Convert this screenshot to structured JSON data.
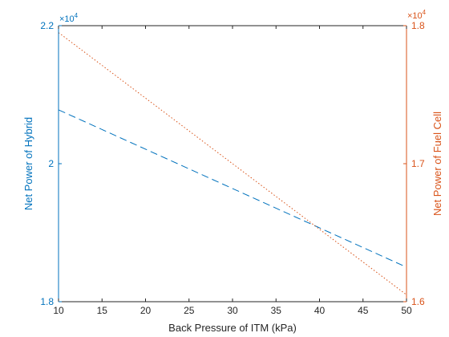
{
  "chart_data": {
    "type": "line",
    "xlabel": "Back Pressure of ITM (kPa)",
    "xlim": [
      10,
      50
    ],
    "x_ticks": [
      10,
      15,
      20,
      25,
      30,
      35,
      40,
      45,
      50
    ],
    "x": [
      10,
      50
    ],
    "left_axis": {
      "ylabel": "Net Power of Hybrid",
      "ylim": [
        18000,
        22000
      ],
      "ticks": [
        18000,
        20000,
        22000
      ],
      "tick_labels": [
        "1.8",
        "2",
        "2.2"
      ],
      "exponent_label": "×10",
      "exponent_power": "4",
      "color": "#0072BD"
    },
    "right_axis": {
      "ylabel": "Net Power of Fuel Cell",
      "ylim": [
        16000,
        18000
      ],
      "ticks": [
        16000,
        17000,
        18000
      ],
      "tick_labels": [
        "1.6",
        "1.7",
        "1.8"
      ],
      "exponent_label": "×10",
      "exponent_power": "4",
      "color": "#D95319"
    },
    "series": [
      {
        "axis": "left",
        "style": "dashed",
        "color": "#0072BD",
        "x": [
          10,
          50
        ],
        "values": [
          20780,
          18500
        ]
      },
      {
        "axis": "right",
        "style": "dotted",
        "color": "#D95319",
        "x": [
          10,
          50
        ],
        "values": [
          17950,
          16050
        ]
      }
    ],
    "grid": false
  }
}
